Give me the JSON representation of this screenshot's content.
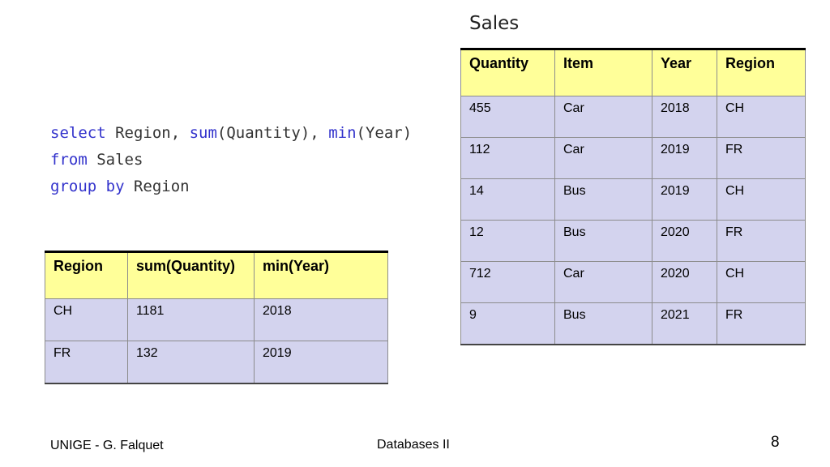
{
  "sales_title": "Sales",
  "sales_table": {
    "headers": [
      "Quantity",
      "Item",
      "Year",
      "Region"
    ],
    "rows": [
      [
        "455",
        "Car",
        "2018",
        "CH"
      ],
      [
        "112",
        "Car",
        "2019",
        "FR"
      ],
      [
        "14",
        "Bus",
        "2019",
        "CH"
      ],
      [
        "12",
        "Bus",
        "2020",
        "FR"
      ],
      [
        "712",
        "Car",
        "2020",
        "CH"
      ],
      [
        "9",
        "Bus",
        "2021",
        "FR"
      ]
    ]
  },
  "sql": {
    "line1": [
      {
        "text": "select",
        "kw": true
      },
      {
        "text": " Region, ",
        "kw": false
      },
      {
        "text": "sum",
        "kw": true
      },
      {
        "text": "(Quantity), ",
        "kw": false
      },
      {
        "text": "min",
        "kw": true
      },
      {
        "text": "(Year)",
        "kw": false
      }
    ],
    "line2": [
      {
        "text": "from",
        "kw": true
      },
      {
        "text": " Sales",
        "kw": false
      }
    ],
    "line3": [
      {
        "text": "group by",
        "kw": true
      },
      {
        "text": " Region",
        "kw": false
      }
    ]
  },
  "result_table": {
    "headers": [
      "Region",
      "sum(Quantity)",
      "min(Year)"
    ],
    "rows": [
      [
        "CH",
        "1181",
        "2018"
      ],
      [
        "FR",
        "132",
        "2019"
      ]
    ]
  },
  "footer": {
    "left": "UNIGE - G. Falquet",
    "center": "Databases II",
    "page_number": "8"
  },
  "colors": {
    "header_bg": "#ffff99",
    "cell_bg": "#d3d3ee",
    "keyword": "#3333cc"
  }
}
